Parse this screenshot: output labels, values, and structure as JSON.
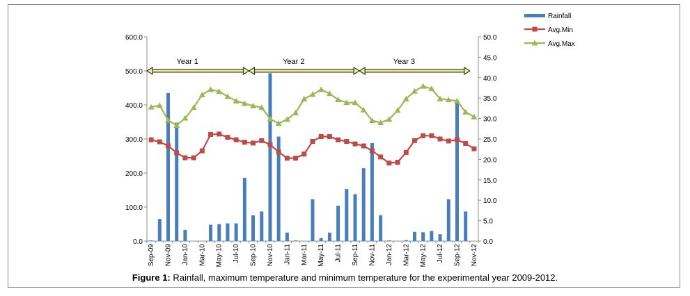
{
  "chart_data": {
    "type": "bar+line",
    "categories": [
      "Sep-09",
      "Oct-09",
      "Nov-09",
      "Dec-09",
      "Jan-10",
      "Feb-10",
      "Mar-10",
      "Apr-10",
      "May-10",
      "Jun-10",
      "Jul-10",
      "Aug-10",
      "Sep-10",
      "Oct-10",
      "Nov-10",
      "Dec-10",
      "Jan-11",
      "Feb-11",
      "Mar-11",
      "Apr-11",
      "May-11",
      "Jun-11",
      "Jul-11",
      "Aug-11",
      "Sep-11",
      "Oct-11",
      "Nov-11",
      "Dec-11",
      "Jan-12",
      "Feb-12",
      "Mar-12",
      "Apr-12",
      "May-12",
      "Jun-12",
      "Jul-12",
      "Aug-12",
      "Sep-12",
      "Oct-12",
      "Nov-12"
    ],
    "tick_labels": [
      "Sep-09",
      "Nov-09",
      "Jan-10",
      "Mar-10",
      "May-10",
      "Jul-10",
      "Sep-10",
      "Nov-10",
      "Jan-11",
      "Mar-11",
      "May-11",
      "Jul-11",
      "Sep-11",
      "Nov-11",
      "Jan-12",
      "Mar-12",
      "May-12",
      "Jul-12",
      "Sep-12",
      "Nov-12"
    ],
    "series": [
      {
        "name": "Rainfall",
        "type": "bar",
        "axis": "left",
        "color": "#4a7ebb",
        "values": [
          2,
          65,
          435,
          348,
          33,
          0,
          0,
          48,
          50,
          52,
          52,
          186,
          76,
          87,
          493,
          307,
          25,
          2,
          0,
          123,
          9,
          25,
          104,
          153,
          138,
          214,
          288,
          76,
          2,
          0,
          3,
          27,
          26,
          30,
          20,
          123,
          413,
          87,
          0
        ]
      },
      {
        "name": "Avg.Min",
        "type": "line",
        "axis": "right",
        "color": "#be4b48",
        "marker": "square",
        "values": [
          24.8,
          24.3,
          23.3,
          21.6,
          20.4,
          20.4,
          22.1,
          26.1,
          26.2,
          25.4,
          24.8,
          24.2,
          24.0,
          24.6,
          23.6,
          21.8,
          20.3,
          20.3,
          21.3,
          24.4,
          25.6,
          25.6,
          24.8,
          24.4,
          23.8,
          23.3,
          22.1,
          20.6,
          19.1,
          19.3,
          21.7,
          24.6,
          25.8,
          25.8,
          25.0,
          24.5,
          24.8,
          23.9,
          22.6
        ]
      },
      {
        "name": "Avg.Max",
        "type": "line",
        "axis": "right",
        "color": "#98b954",
        "marker": "triangle",
        "values": [
          32.8,
          33.2,
          29.6,
          28.3,
          30.1,
          32.7,
          35.8,
          37.1,
          36.6,
          35.4,
          34.3,
          33.7,
          33.1,
          32.7,
          29.9,
          28.8,
          29.8,
          31.4,
          34.8,
          35.9,
          37.1,
          36.1,
          34.6,
          33.9,
          33.9,
          32.1,
          29.5,
          29.0,
          29.8,
          32.0,
          34.8,
          36.7,
          37.9,
          37.3,
          34.8,
          34.6,
          34.3,
          31.6,
          30.4
        ]
      }
    ],
    "left_axis": {
      "min": 0,
      "max": 600,
      "step": 100,
      "tick_labels": [
        "0.0",
        "100.0",
        "200.0",
        "300.0",
        "400.0",
        "500.0",
        "600.0"
      ]
    },
    "right_axis": {
      "min": 0,
      "max": 50,
      "step": 5,
      "tick_labels": [
        "0.0",
        "5.0",
        "10.0",
        "15.0",
        "20.0",
        "25.0",
        "30.0",
        "35.0",
        "40.0",
        "45.0",
        "50.0"
      ]
    },
    "year_spans": [
      {
        "label": "Year 1",
        "start": 0,
        "end": 12
      },
      {
        "label": "Year 2",
        "start": 12,
        "end": 25
      },
      {
        "label": "Year 3",
        "start": 25,
        "end": 38
      }
    ],
    "legend": {
      "position": "top-right",
      "entries": [
        "Rainfall",
        "Avg.Min",
        "Avg.Max"
      ]
    }
  },
  "caption": {
    "label": "Figure 1:",
    "text": " Rainfall, maximum temperature and minimum temperature for the experimental year 2009-2012."
  }
}
